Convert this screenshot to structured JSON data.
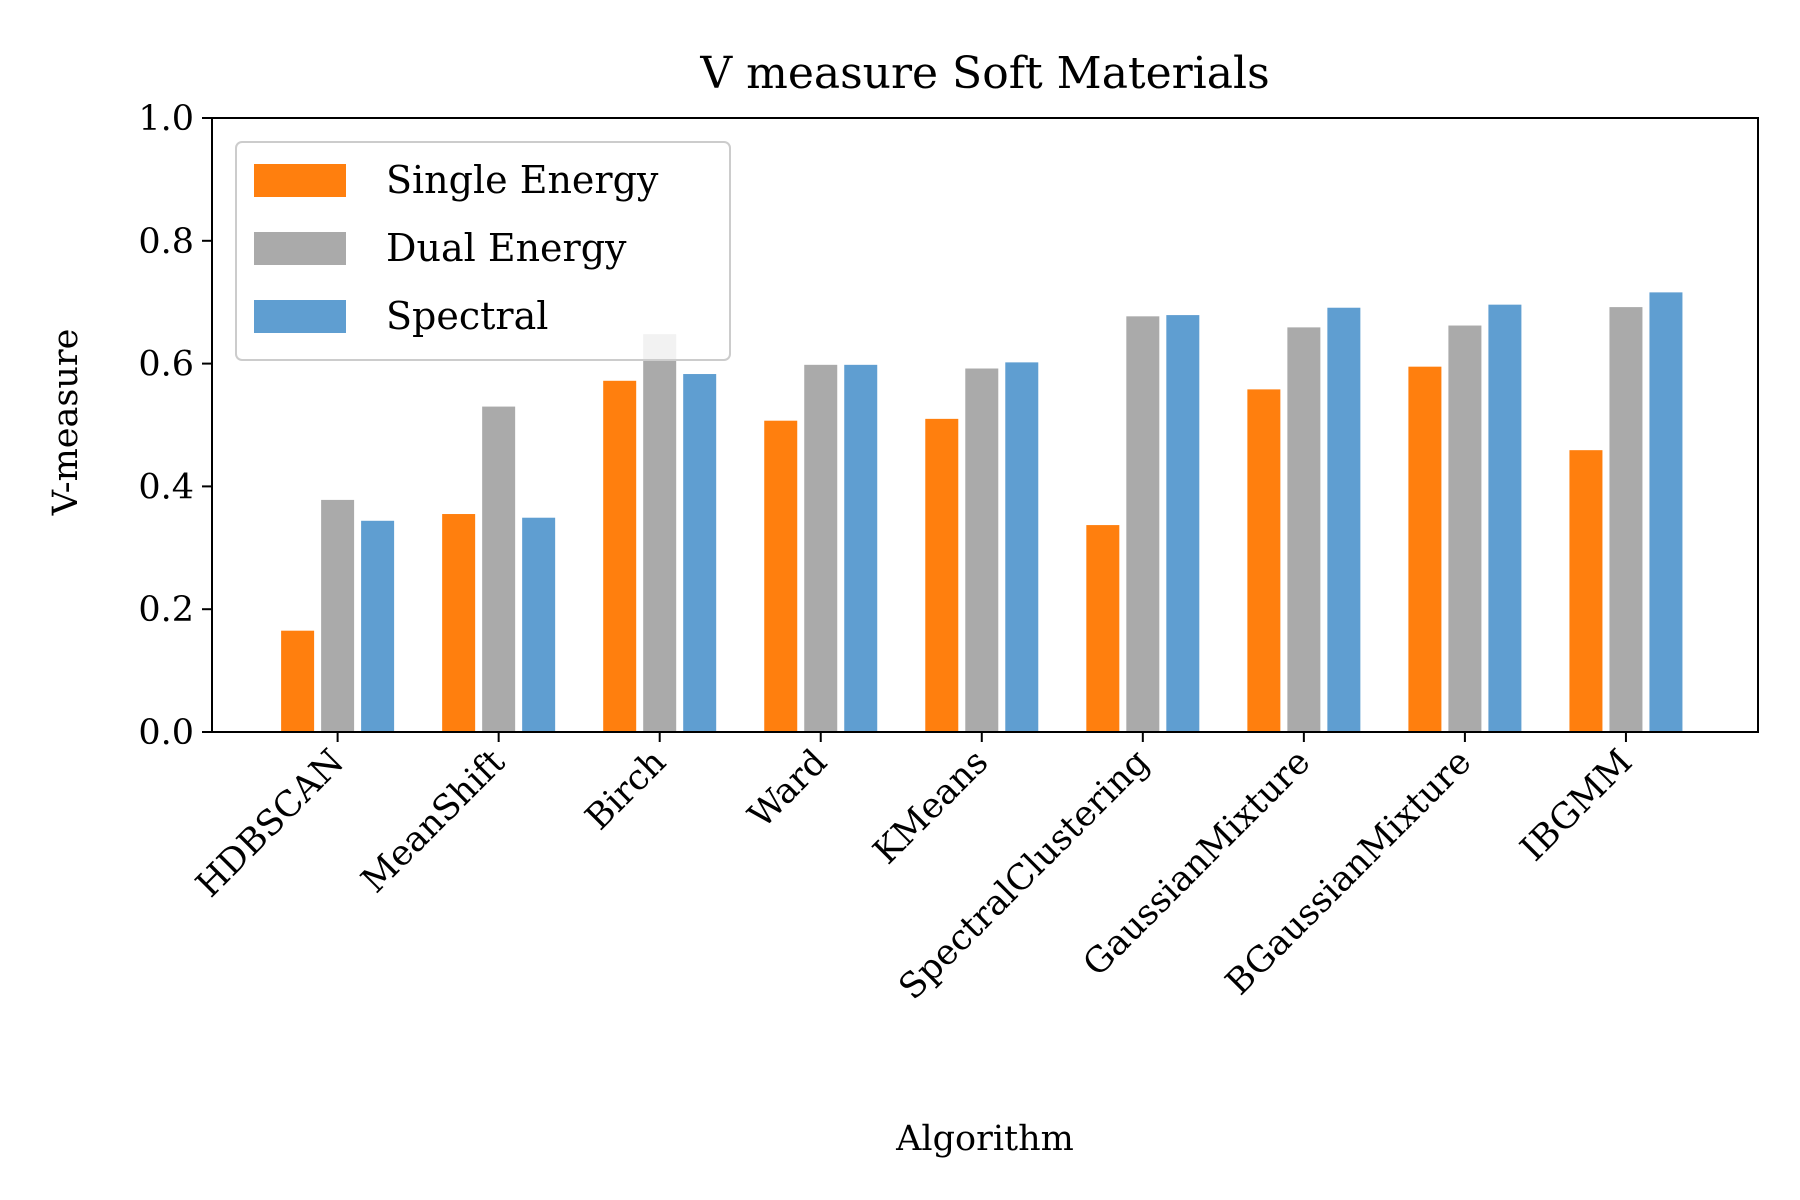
{
  "chart_data": {
    "type": "bar",
    "title": "V measure Soft Materials",
    "xlabel": "Algorithm",
    "ylabel": "V-measure",
    "ylim": [
      0,
      1.0
    ],
    "yticks": [
      "0.0",
      "0.2",
      "0.4",
      "0.6",
      "0.8",
      "1.0"
    ],
    "grid": false,
    "legend_position": "top-left",
    "categories": [
      "HDBSCAN",
      "MeanShift",
      "Birch",
      "Ward",
      "KMeans",
      "SpectralClustering",
      "GaussianMixture",
      "BGaussianMixture",
      "IBGMM"
    ],
    "series": [
      {
        "name": "Single Energy",
        "color": "#ff7f0e",
        "values": [
          0.165,
          0.355,
          0.572,
          0.507,
          0.51,
          0.337,
          0.558,
          0.595,
          0.459
        ]
      },
      {
        "name": "Dual Energy",
        "color": "#aaaaaa",
        "values": [
          0.378,
          0.53,
          0.648,
          0.598,
          0.592,
          0.677,
          0.659,
          0.662,
          0.692
        ]
      },
      {
        "name": "Spectral",
        "color": "#5f9ed1",
        "values": [
          0.344,
          0.349,
          0.583,
          0.598,
          0.602,
          0.679,
          0.691,
          0.696,
          0.716
        ]
      }
    ]
  }
}
